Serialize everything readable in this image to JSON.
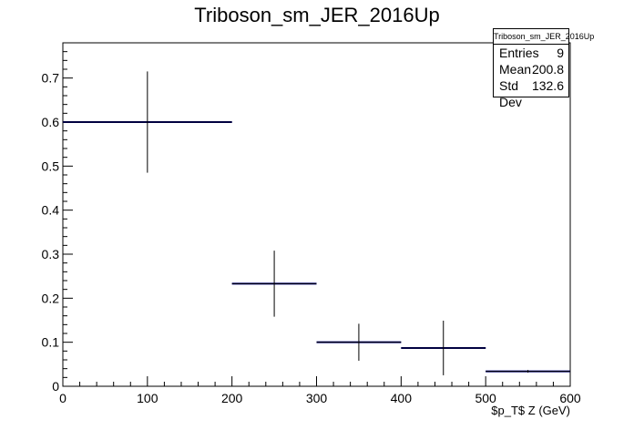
{
  "chart_data": {
    "type": "histogram",
    "title": "Triboson_sm_JER_2016Up",
    "xlabel": "$p_T$ Z (GeV)",
    "ylabel": "",
    "xlim": [
      0,
      600
    ],
    "ylim": [
      0,
      0.78
    ],
    "x_ticks": [
      0,
      100,
      200,
      300,
      400,
      500,
      600
    ],
    "y_ticks": [
      0,
      0.1,
      0.2,
      0.3,
      0.4,
      0.5,
      0.6,
      0.7
    ],
    "bins": [
      {
        "low": 0,
        "high": 200,
        "value": 0.6,
        "error": 0.115
      },
      {
        "low": 200,
        "high": 300,
        "value": 0.233,
        "error": 0.075
      },
      {
        "low": 300,
        "high": 400,
        "value": 0.1,
        "error": 0.042
      },
      {
        "low": 400,
        "high": 500,
        "value": 0.087,
        "error": 0.062
      },
      {
        "low": 500,
        "high": 600,
        "value": 0.034,
        "error": 0.003
      }
    ],
    "colors": {
      "line": "#000080",
      "error": "#000000"
    },
    "stats": {
      "title": "Triboson_sm_JER_2016Up",
      "entries_label": "Entries",
      "entries": "9",
      "mean_label": "Mean",
      "mean": "200.8",
      "stddev_label": "Std Dev",
      "stddev": "132.6"
    }
  }
}
